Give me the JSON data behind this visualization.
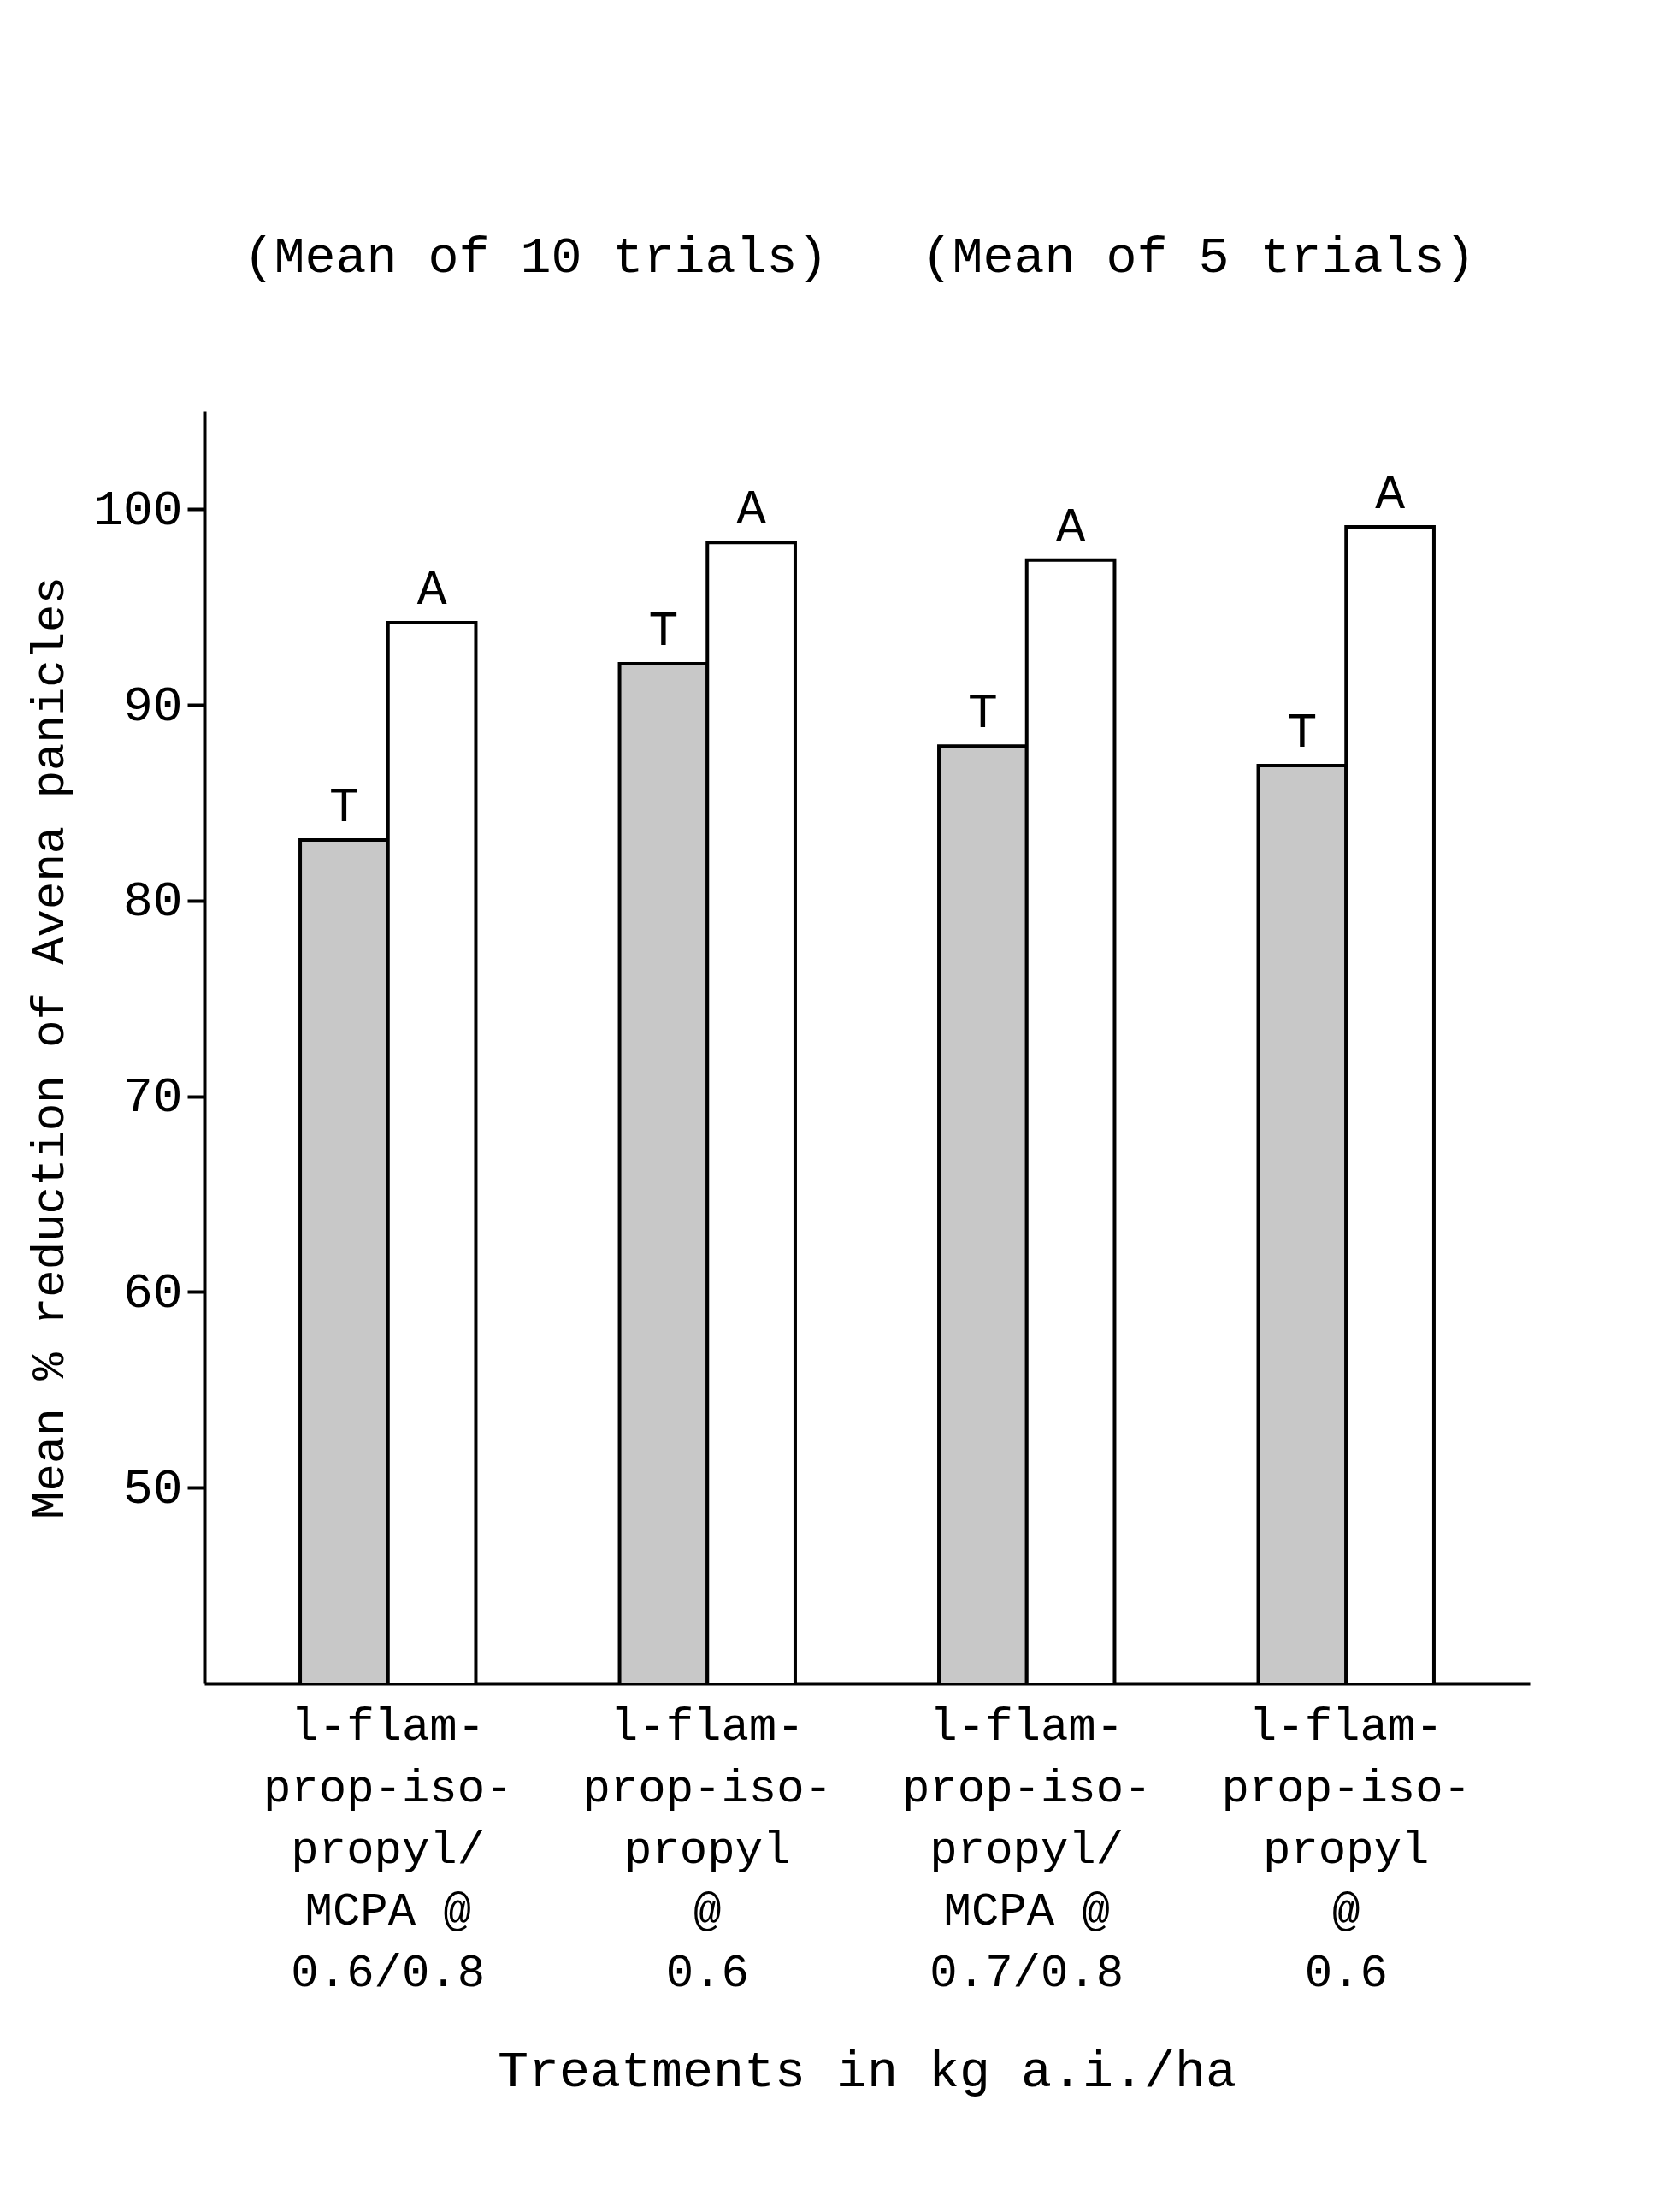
{
  "chart_data": {
    "type": "bar",
    "xlabel": "Treatments in kg a.i./ha",
    "ylabel": "Mean % reduction of Avena panicles",
    "annotations": [
      "(Mean of 10 trials)",
      "(Mean of 5 trials)"
    ],
    "categories": [
      "l-flam-\nprop-iso-\npropyl/\nMCPA @\n0.6/0.8",
      "l-flam-\nprop-iso-\npropyl\n@\n0.6",
      "l-flam-\nprop-iso-\npropyl/\nMCPA @\n0.7/0.8",
      "l-flam-\nprop-iso-\npropyl\n@\n0.6"
    ],
    "series": [
      {
        "name": "T",
        "color": "#c8c8c8",
        "values": [
          83.1,
          92.1,
          87.9,
          86.9
        ]
      },
      {
        "name": "A",
        "color": "#ffffff",
        "values": [
          94.2,
          98.3,
          97.4,
          99.1
        ]
      }
    ],
    "ylim": [
      40,
      105
    ],
    "yticks": [
      50,
      60,
      70,
      80,
      90,
      100
    ]
  }
}
